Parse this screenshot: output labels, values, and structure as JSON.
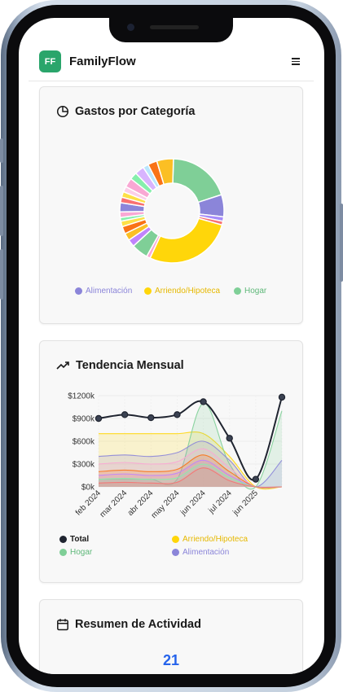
{
  "app": {
    "logo": "FF",
    "title": "FamilyFlow",
    "menu_icon": "hamburger-icon"
  },
  "expenses_card": {
    "title": "Gastos por Categoría",
    "icon": "pie-chart-icon",
    "legend": [
      {
        "label": "Alimentación",
        "color": "#8b85d9"
      },
      {
        "label": "Arriendo/Hipoteca",
        "color": "#ffd60a"
      },
      {
        "label": "Hogar",
        "color": "#7fcf97"
      }
    ]
  },
  "trend_card": {
    "title": "Tendencia Mensual",
    "icon": "trending-up-icon",
    "legend": [
      {
        "label": "Total",
        "color": "#1f2430"
      },
      {
        "label": "Arriendo/Hipoteca",
        "color": "#ffd60a"
      },
      {
        "label": "Hogar",
        "color": "#7fcf97"
      },
      {
        "label": "Alimentación",
        "color": "#8b85d9"
      }
    ]
  },
  "activity_card": {
    "title": "Resumen de Actividad",
    "icon": "calendar-icon",
    "count": "21"
  },
  "chart_data": [
    {
      "type": "pie",
      "title": "Gastos por Categoría",
      "series": [
        {
          "name": "Hogar",
          "value": 17,
          "color": "#7fcf97"
        },
        {
          "name": "",
          "value": 6,
          "color": "#8b85d9"
        },
        {
          "name": "",
          "value": 1.2,
          "color": "#a78bfa"
        },
        {
          "name": "",
          "value": 1.0,
          "color": "#f87171"
        },
        {
          "name": "Arriendo/Hipoteca",
          "value": 24,
          "color": "#ffd60a"
        },
        {
          "name": "",
          "value": 1.0,
          "color": "#f9a8d4"
        },
        {
          "name": "",
          "value": 4.5,
          "color": "#7fcf97"
        },
        {
          "name": "",
          "value": 2.0,
          "color": "#c084fc"
        },
        {
          "name": "",
          "value": 2.0,
          "color": "#fbbf24"
        },
        {
          "name": "",
          "value": 2.0,
          "color": "#f97316"
        },
        {
          "name": "",
          "value": 1.5,
          "color": "#fde047"
        },
        {
          "name": "",
          "value": 1.0,
          "color": "#86efac"
        },
        {
          "name": "",
          "value": 1.5,
          "color": "#f9a8d4"
        },
        {
          "name": "",
          "value": 2.5,
          "color": "#8b85d9"
        },
        {
          "name": "",
          "value": 1.5,
          "color": "#f87171"
        },
        {
          "name": "",
          "value": 1.5,
          "color": "#fde047"
        },
        {
          "name": "",
          "value": 1.5,
          "color": "#fbcfe8"
        },
        {
          "name": "",
          "value": 2.5,
          "color": "#f9a8d4"
        },
        {
          "name": "",
          "value": 2.0,
          "color": "#86efac"
        },
        {
          "name": "",
          "value": 2.5,
          "color": "#d8b4fe"
        },
        {
          "name": "",
          "value": 1.5,
          "color": "#bae6fd"
        },
        {
          "name": "",
          "value": 2.5,
          "color": "#f97316"
        },
        {
          "name": "",
          "value": 4.5,
          "color": "#fbbf24"
        }
      ]
    },
    {
      "type": "area",
      "title": "Tendencia Mensual",
      "x": [
        "feb 2024",
        "mar 2024",
        "abr 2024",
        "may 2024",
        "jun 2024",
        "jul 2024",
        "jun 2025",
        ""
      ],
      "x_tick_labels": [
        "feb 2024",
        "mar 2024",
        "abr 2024",
        "may 2024",
        "jun 2024",
        "jul 2024",
        "jun 2025"
      ],
      "ylim": [
        0,
        1200000
      ],
      "y_ticks": [
        "$0k",
        "$300k",
        "$600k",
        "$900k",
        "$1200k"
      ],
      "y_tick_values": [
        0,
        300000,
        600000,
        900000,
        1200000
      ],
      "grid": true,
      "series": [
        {
          "name": "Total",
          "values": [
            900000,
            950000,
            910000,
            950000,
            1120000,
            640000,
            100000,
            1180000
          ],
          "color": "#1f2430",
          "line_only": true
        },
        {
          "name": "Arriendo/Hipoteca",
          "values": [
            700000,
            700000,
            700000,
            700000,
            700000,
            400000,
            0,
            0
          ],
          "color": "#ffd60a"
        },
        {
          "name": "Hogar",
          "values": [
            100000,
            100000,
            100000,
            100000,
            1100000,
            300000,
            0,
            1000000
          ],
          "color": "#7fcf97"
        },
        {
          "name": "Alimentación",
          "values": [
            400000,
            420000,
            400000,
            450000,
            600000,
            350000,
            0,
            350000
          ],
          "color": "#8b85d9"
        },
        {
          "name": "",
          "values": [
            300000,
            320000,
            300000,
            330000,
            500000,
            250000,
            0,
            0
          ],
          "color": "#f9a8d4"
        },
        {
          "name": "",
          "values": [
            200000,
            220000,
            200000,
            230000,
            420000,
            200000,
            0,
            0
          ],
          "color": "#f97316"
        },
        {
          "name": "",
          "values": [
            150000,
            170000,
            150000,
            180000,
            350000,
            150000,
            0,
            0
          ],
          "color": "#c084fc"
        },
        {
          "name": "",
          "values": [
            100000,
            110000,
            100000,
            120000,
            300000,
            120000,
            0,
            0
          ],
          "color": "#86efac"
        },
        {
          "name": "",
          "values": [
            50000,
            60000,
            50000,
            60000,
            250000,
            80000,
            0,
            0
          ],
          "color": "#f87171"
        }
      ]
    }
  ]
}
